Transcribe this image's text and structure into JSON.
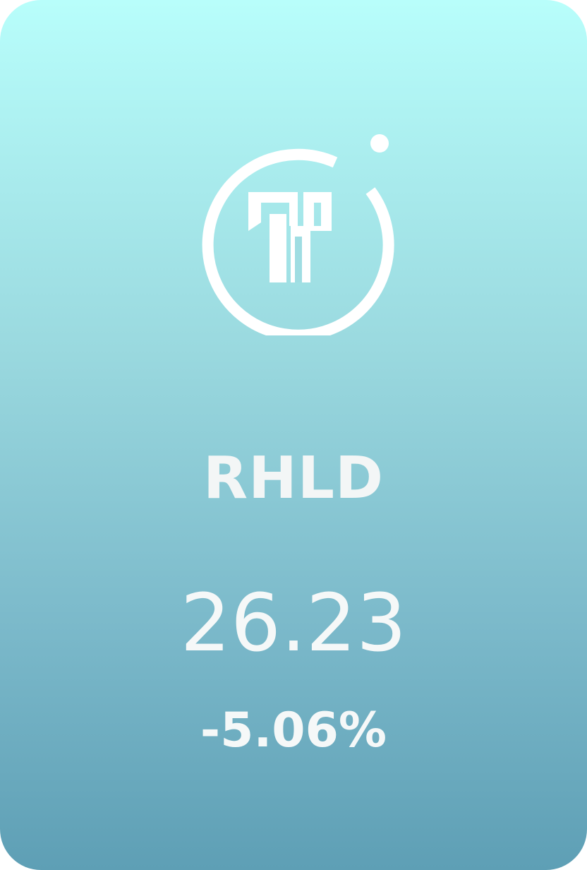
{
  "card": {
    "ticker": "RHLD",
    "price": "26.23",
    "change_percent": "-5.06%",
    "logo_icon": "brand-logo-icon",
    "colors": {
      "gradient_top": "#b8fefb",
      "gradient_bottom": "#5e9fb5",
      "text": "#f5f8f8"
    }
  }
}
